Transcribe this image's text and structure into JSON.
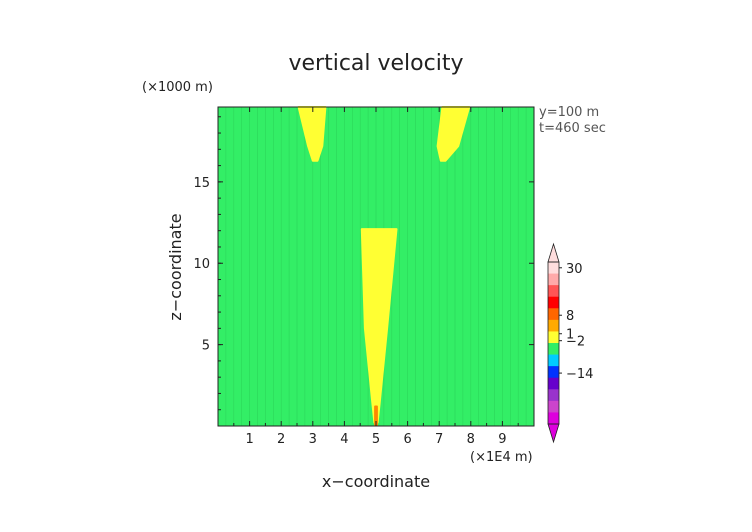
{
  "chart_data": {
    "type": "heatmap",
    "title": "vertical velocity",
    "xlabel": "x−coordinate",
    "ylabel": "z−coordinate",
    "x_unit_label": "(×1E4 m)",
    "y_unit_label": "(×1000 m)",
    "xlim": [
      0,
      10
    ],
    "ylim": [
      0,
      19.6
    ],
    "x_ticks": [
      1,
      2,
      3,
      4,
      5,
      6,
      7,
      8,
      9
    ],
    "y_ticks": [
      5,
      10,
      15
    ],
    "annotations": [
      "y=100 m",
      "t=460 sec"
    ],
    "background_color": "#33ee66",
    "regions": [
      {
        "name": "updraft-center",
        "color": "#ffff33",
        "outline": [
          [
            4.55,
            12.1
          ],
          [
            5.65,
            12.1
          ],
          [
            5.35,
            6
          ],
          [
            5.12,
            1.5
          ],
          [
            5.05,
            0.2
          ],
          [
            4.95,
            0.2
          ],
          [
            4.88,
            1.5
          ],
          [
            4.65,
            6
          ]
        ]
      },
      {
        "name": "updraft-upper-left",
        "color": "#ffff33",
        "outline": [
          [
            2.55,
            19.6
          ],
          [
            3.4,
            19.6
          ],
          [
            3.3,
            17.2
          ],
          [
            3.15,
            16.3
          ],
          [
            3.0,
            16.3
          ],
          [
            2.85,
            17.2
          ]
        ]
      },
      {
        "name": "updraft-upper-right",
        "color": "#ffff33",
        "outline": [
          [
            7.1,
            19.6
          ],
          [
            7.95,
            19.6
          ],
          [
            7.6,
            17.2
          ],
          [
            7.2,
            16.3
          ],
          [
            7.05,
            16.3
          ],
          [
            6.95,
            17.2
          ]
        ]
      },
      {
        "name": "core-center",
        "color": "#ff8800",
        "outline": [
          [
            4.97,
            1.2
          ],
          [
            5.03,
            1.2
          ],
          [
            5.03,
            0.05
          ],
          [
            4.97,
            0.05
          ]
        ]
      }
    ],
    "colorbar": {
      "tick_labels": [
        {
          "label": "30",
          "value": 30
        },
        {
          "label": "8",
          "value": 8
        },
        {
          "label": "1",
          "value": 1
        },
        {
          "label": "−2",
          "value": -2
        },
        {
          "label": "−14",
          "value": -14
        }
      ],
      "levels": [
        {
          "color": "#ffdddd"
        },
        {
          "color": "#ffaaaa"
        },
        {
          "color": "#ff5555"
        },
        {
          "color": "#ff0000"
        },
        {
          "color": "#ff6600"
        },
        {
          "color": "#ffaa00"
        },
        {
          "color": "#ffff33"
        },
        {
          "color": "#33ee66"
        },
        {
          "color": "#00ccff"
        },
        {
          "color": "#0033ff"
        },
        {
          "color": "#6600cc"
        },
        {
          "color": "#9933cc"
        },
        {
          "color": "#cc44cc"
        },
        {
          "color": "#dd00dd"
        }
      ]
    }
  }
}
